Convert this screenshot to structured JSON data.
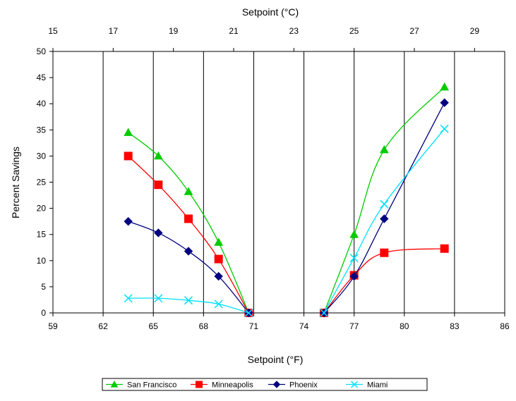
{
  "chart_data": {
    "type": "line",
    "x_label": "Setpoint (°F)",
    "x2_label": "Setpoint (°C)",
    "y_label": "Percent Savings",
    "x_range": [
      59,
      86
    ],
    "y_range": [
      0,
      50
    ],
    "x_ticks": [
      59,
      62,
      65,
      68,
      71,
      74,
      77,
      80,
      83,
      86
    ],
    "x_tick_labels": [
      "59",
      "62",
      "65",
      "68",
      "71",
      "74",
      "77",
      "80",
      "83",
      "86"
    ],
    "x2_ticks_celsius": [
      15,
      17,
      19,
      21,
      23,
      25,
      27,
      29
    ],
    "x2_tick_labels": [
      "15",
      "17",
      "19",
      "21",
      "23",
      "25",
      "27",
      "29"
    ],
    "y_ticks": [
      0,
      5,
      10,
      15,
      20,
      25,
      30,
      35,
      40,
      45,
      50
    ],
    "y_tick_labels": [
      "0",
      "5",
      "10",
      "15",
      "20",
      "25",
      "30",
      "35",
      "40",
      "45",
      "50"
    ],
    "grid": "vertical",
    "legend_position": "bottom",
    "series": [
      {
        "name": "San Francisco",
        "color": "#00cc00",
        "marker": "triangle",
        "segments": [
          [
            [
              63.5,
              34.5
            ],
            [
              65.3,
              30.0
            ],
            [
              67.1,
              23.2
            ],
            [
              68.9,
              13.5
            ],
            [
              70.7,
              0.0
            ]
          ],
          [
            [
              75.2,
              0.0
            ],
            [
              77.0,
              15.0
            ],
            [
              78.8,
              31.2
            ],
            [
              82.4,
              43.2
            ]
          ]
        ]
      },
      {
        "name": "Minneapolis",
        "color": "#ff0000",
        "marker": "square",
        "segments": [
          [
            [
              63.5,
              30.0
            ],
            [
              65.3,
              24.5
            ],
            [
              67.1,
              18.0
            ],
            [
              68.9,
              10.3
            ],
            [
              70.7,
              0.0
            ]
          ],
          [
            [
              75.2,
              0.0
            ],
            [
              77.0,
              7.2
            ],
            [
              78.8,
              11.5
            ],
            [
              82.4,
              12.3
            ]
          ]
        ]
      },
      {
        "name": "Phoenix",
        "color": "#000080",
        "marker": "diamond",
        "segments": [
          [
            [
              63.5,
              17.5
            ],
            [
              65.3,
              15.3
            ],
            [
              67.1,
              11.8
            ],
            [
              68.9,
              7.0
            ],
            [
              70.7,
              0.0
            ]
          ],
          [
            [
              75.2,
              0.0
            ],
            [
              77.0,
              7.0
            ],
            [
              78.8,
              18.0
            ],
            [
              82.4,
              40.2
            ]
          ]
        ]
      },
      {
        "name": "Miami",
        "color": "#00e0ff",
        "marker": "x",
        "segments": [
          [
            [
              63.5,
              2.8
            ],
            [
              65.3,
              2.8
            ],
            [
              67.1,
              2.4
            ],
            [
              68.9,
              1.7
            ],
            [
              70.7,
              0.0
            ]
          ],
          [
            [
              75.2,
              0.0
            ],
            [
              77.0,
              10.5
            ],
            [
              78.8,
              20.8
            ],
            [
              82.4,
              35.2
            ]
          ]
        ]
      }
    ]
  }
}
